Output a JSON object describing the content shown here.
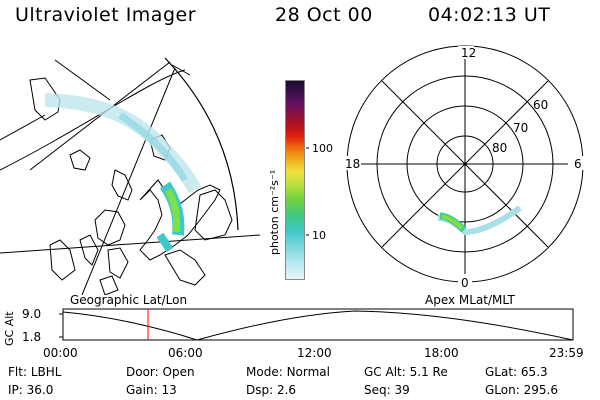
{
  "header": {
    "title": "Ultraviolet Imager",
    "date": "28 Oct 00",
    "time": "04:02:13 UT"
  },
  "left_panel": {
    "label": "Geographic Lat/Lon"
  },
  "colorbar": {
    "unit_label": "photon cm⁻²s⁻¹",
    "ticks": [
      {
        "value": 100,
        "label": "100"
      },
      {
        "value": 10,
        "label": "10"
      }
    ],
    "scale": "log"
  },
  "polar_panel": {
    "label": "Apex MLat/MLT",
    "mlt_labels": {
      "top": "12",
      "bottom": "0",
      "left": "18",
      "right": "6"
    },
    "lat_labels": [
      "60",
      "70",
      "80"
    ]
  },
  "timeline": {
    "ylabel": "GC Alt",
    "yticks": [
      "9.0",
      "1.8"
    ],
    "xticks": [
      "00:00",
      "06:00",
      "12:00",
      "18:00",
      "23:59"
    ],
    "current_time": "04:02"
  },
  "info": {
    "row1": [
      {
        "label": "Flt:",
        "value": "LBHL"
      },
      {
        "label": "Door:",
        "value": "Open"
      },
      {
        "label": "Mode:",
        "value": "Normal"
      },
      {
        "label": "GC Alt:",
        "value": "5.1 Re"
      },
      {
        "label": "GLat:",
        "value": "65.3"
      }
    ],
    "row2": [
      {
        "label": "IP:",
        "value": "36.0"
      },
      {
        "label": "Gain:",
        "value": "13"
      },
      {
        "label": "Dsp:",
        "value": "2.6"
      },
      {
        "label": "Seq:",
        "value": "39"
      },
      {
        "label": "GLon:",
        "value": "295.6"
      }
    ]
  }
}
